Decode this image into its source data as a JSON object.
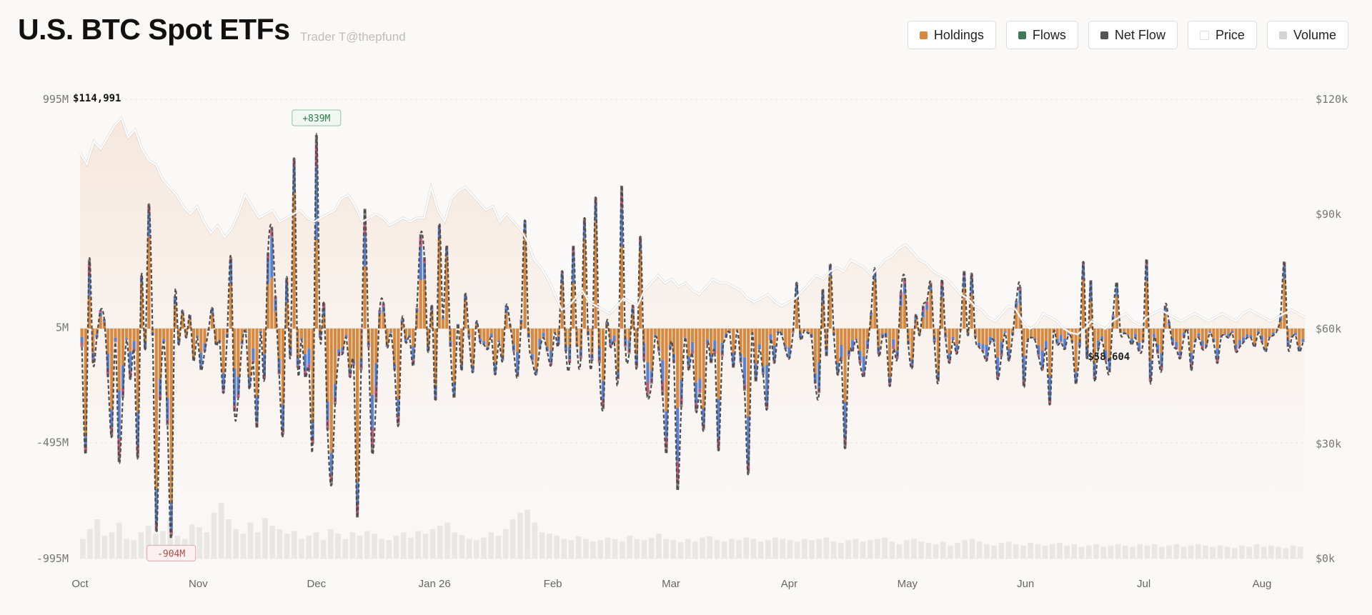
{
  "header": {
    "title": "U.S. BTC Spot ETFs",
    "subtitle": "Trader T@thepfund"
  },
  "legend": [
    {
      "label": "Holdings",
      "color": "#d9893f"
    },
    {
      "label": "Flows",
      "color": "#3f7a57"
    },
    {
      "label": "Net Flow",
      "color": "#555555"
    },
    {
      "label": "Price",
      "color": "#ffffff"
    },
    {
      "label": "Volume",
      "color": "#d4d4d4"
    }
  ],
  "chart_data": {
    "type": "bar",
    "title": "U.S. BTC Spot ETFs",
    "x_ticks": [
      "Oct",
      "Nov",
      "Dec",
      "Jan 26",
      "Feb",
      "Mar",
      "Apr",
      "May",
      "Jun",
      "Jul",
      "Aug"
    ],
    "y_left": {
      "ticks": [
        "995M",
        "5M",
        "-495M",
        "-995M"
      ],
      "ylim": [
        -995,
        995
      ],
      "unit": "M"
    },
    "y_right": {
      "ticks": [
        "$120k",
        "$90k",
        "$60k",
        "$30k",
        "$0k"
      ],
      "ylim": [
        0,
        120000
      ]
    },
    "annotations": [
      {
        "label": "$114,991",
        "kind": "price-high",
        "value": 114991
      },
      {
        "label": "+839M",
        "kind": "max-flow",
        "value": 839
      },
      {
        "label": "-904M",
        "kind": "min-flow",
        "value": -904
      },
      {
        "label": "$58,604",
        "kind": "price-low",
        "value": 58604
      }
    ],
    "series": [
      {
        "name": "Net Flow",
        "values": [
          -80,
          -540,
          300,
          -150,
          -40,
          80,
          40,
          -210,
          -470,
          -60,
          -580,
          -300,
          -50,
          -220,
          -100,
          -560,
          230,
          -90,
          540,
          -30,
          -880,
          -310,
          -60,
          -420,
          -900,
          140,
          -70,
          80,
          -40,
          60,
          -140,
          -40,
          -180,
          -100,
          -10,
          90,
          -70,
          -60,
          -280,
          -40,
          310,
          -360,
          -300,
          -70,
          -20,
          -260,
          -150,
          -430,
          -20,
          -220,
          330,
          440,
          140,
          -200,
          -460,
          220,
          -120,
          740,
          -170,
          -50,
          -210,
          -180,
          -500,
          840,
          -40,
          110,
          -440,
          -680,
          -330,
          -120,
          -110,
          -40,
          -210,
          -160,
          -820,
          -180,
          520,
          -80,
          -540,
          -320,
          80,
          110,
          -80,
          -20,
          -180,
          -420,
          40,
          -60,
          -40,
          -160,
          90,
          410,
          310,
          -100,
          100,
          -310,
          450,
          50,
          360,
          -80,
          -300,
          20,
          -180,
          150,
          -40,
          -190,
          30,
          -60,
          -70,
          -90,
          -40,
          -200,
          -60,
          -140,
          100,
          20,
          -100,
          -210,
          40,
          470,
          -40,
          -140,
          -200,
          -90,
          -40,
          -100,
          -160,
          -20,
          -70,
          250,
          -100,
          -150,
          360,
          -80,
          -130,
          480,
          -30,
          -140,
          570,
          -150,
          -350,
          30,
          -80,
          -60,
          -220,
          620,
          -80,
          -110,
          100,
          -170,
          400,
          -140,
          -300,
          -240,
          -40,
          -100,
          -290,
          -540,
          -90,
          -150,
          -700,
          -340,
          -40,
          -180,
          -110,
          -360,
          -280,
          -440,
          -70,
          -150,
          -110,
          -530,
          -120,
          -40,
          -20,
          -170,
          -10,
          -150,
          -270,
          -630,
          -30,
          -230,
          -90,
          -200,
          -350,
          -50,
          -150,
          -20,
          -30,
          -90,
          -130,
          -20,
          200,
          -40,
          -10,
          -20,
          -40,
          -240,
          -280,
          170,
          -120,
          280,
          -30,
          -200,
          -140,
          -520,
          -120,
          -100,
          -50,
          -150,
          -210,
          -90,
          70,
          260,
          -110,
          -40,
          -40,
          -250,
          -90,
          -130,
          160,
          220,
          -70,
          -170,
          60,
          -30,
          100,
          120,
          200,
          -60,
          -230,
          210,
          -40,
          -150,
          -50,
          -110,
          -10,
          250,
          -30,
          240,
          -40,
          -80,
          -100,
          -140,
          -60,
          -60,
          -220,
          -120,
          -20,
          -140,
          -30,
          120,
          180,
          -250,
          -60,
          -40,
          -50,
          -120,
          -180,
          -90,
          -330,
          -20,
          -70,
          -60,
          -90,
          -30,
          -60,
          -240,
          -80,
          290,
          -130,
          210,
          -220,
          -90,
          -50,
          -140,
          -190,
          60,
          200,
          -20,
          -20,
          -30,
          -70,
          -40,
          -100,
          -60,
          300,
          -230,
          -40,
          -110,
          -180,
          100,
          30,
          -70,
          -90,
          -130,
          -40,
          -10,
          -180,
          -60,
          -40,
          -90,
          -80,
          -20,
          -60,
          -150,
          -40,
          -30,
          -40,
          -20,
          -100,
          -80,
          -60,
          -40,
          -40,
          -80,
          -20,
          -60,
          -100,
          -40,
          -30,
          -10,
          60,
          290,
          -80,
          -40,
          -30,
          -100,
          -60
        ]
      },
      {
        "name": "Price",
        "values": [
          106000,
          103000,
          109000,
          107000,
          110000,
          113000,
          114991,
          110000,
          112000,
          107000,
          104000,
          103000,
          99000,
          97000,
          95000,
          92000,
          90000,
          92000,
          88000,
          85000,
          87000,
          84000,
          86000,
          90000,
          95000,
          92000,
          89000,
          90000,
          91000,
          88000,
          89000,
          90000,
          91000,
          89000,
          88000,
          89000,
          90000,
          91000,
          94000,
          95000,
          92000,
          88000,
          89000,
          90000,
          89000,
          87000,
          88000,
          89000,
          88000,
          89000,
          89000,
          97000,
          91000,
          88000,
          94000,
          96000,
          97000,
          95000,
          93000,
          91000,
          92000,
          88000,
          90000,
          88000,
          86000,
          83000,
          78000,
          76000,
          73000,
          69000,
          65000,
          66000,
          68000,
          70000,
          67000,
          66000,
          65000,
          64000,
          66000,
          68000,
          67000,
          66000,
          70000,
          72000,
          74000,
          72000,
          73000,
          71000,
          72000,
          70000,
          69000,
          71000,
          73000,
          72000,
          72000,
          71000,
          70000,
          68000,
          67000,
          68000,
          69000,
          67000,
          66000,
          67000,
          68000,
          70000,
          72000,
          74000,
          73000,
          75000,
          76000,
          75000,
          78000,
          77000,
          76000,
          74000,
          76000,
          78000,
          79000,
          81000,
          82000,
          80000,
          78000,
          77000,
          75000,
          74000,
          73000,
          71000,
          69000,
          68000,
          66000,
          65000,
          63000,
          62000,
          64000,
          66000,
          65000,
          62000,
          60000,
          61000,
          64000,
          63000,
          62000,
          60000,
          59000,
          58604,
          60000,
          62000,
          61000,
          60000,
          62000,
          63000,
          64000,
          62000,
          61000,
          63000,
          64000,
          65000,
          64000,
          63000,
          62000,
          63000,
          64000,
          63000,
          62000,
          63000,
          64000,
          63000,
          62000,
          64000,
          65000,
          64000,
          63000,
          62000,
          63000,
          64000,
          65000,
          64000,
          63000
        ]
      },
      {
        "name": "Volume",
        "values": [
          30,
          45,
          60,
          35,
          40,
          55,
          30,
          28,
          40,
          50,
          38,
          42,
          60,
          35,
          30,
          52,
          48,
          40,
          70,
          85,
          60,
          45,
          38,
          55,
          40,
          62,
          50,
          45,
          38,
          42,
          30,
          35,
          40,
          28,
          45,
          38,
          30,
          40,
          35,
          42,
          38,
          30,
          28,
          35,
          40,
          32,
          42,
          38,
          45,
          50,
          55,
          40,
          36,
          30,
          28,
          32,
          40,
          35,
          45,
          60,
          70,
          75,
          55,
          40,
          38,
          35,
          30,
          28,
          34,
          30,
          26,
          28,
          32,
          30,
          26,
          35,
          30,
          28,
          32,
          38,
          30,
          28,
          25,
          30,
          26,
          32,
          34,
          28,
          26,
          30,
          28,
          32,
          30,
          26,
          28,
          32,
          30,
          28,
          26,
          30,
          28,
          30,
          32,
          26,
          24,
          28,
          30,
          26,
          28,
          30,
          32,
          26,
          22,
          28,
          30,
          26,
          24,
          22,
          26,
          20,
          24,
          28,
          30,
          26,
          22,
          20,
          24,
          26,
          22,
          20,
          24,
          22,
          20,
          22,
          24,
          20,
          22,
          18,
          20,
          22,
          18,
          20,
          22,
          20,
          18,
          22,
          20,
          22,
          18,
          20,
          22,
          18,
          20,
          22,
          20,
          18,
          20,
          18,
          16,
          20,
          18,
          22,
          18,
          20,
          18,
          16,
          20,
          18
        ]
      }
    ]
  }
}
